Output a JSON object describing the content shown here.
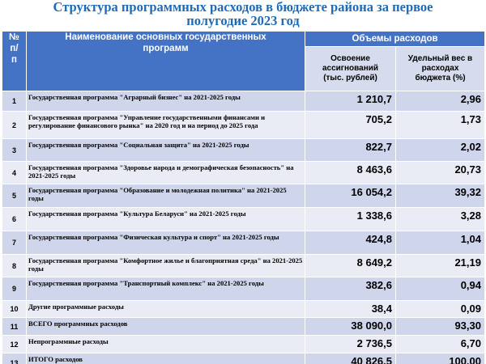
{
  "title": "Структура программных расходов в бюджете района за первое\nполугодие  2023  год",
  "header": {
    "num": "№\nп/\nп",
    "name": "Наименование основных государственных\nпрограмм",
    "volumes": "Объемы расходов",
    "spent": "Освоение\nассигнований\n(тыс. рублей)",
    "share": "Удельный вес в\nрасходах\nбюджета (%)"
  },
  "rows": [
    {
      "num": "1",
      "name": "Государственная программа \"Аграрный бизнес\" на 2021-2025 годы",
      "spent": "1 210,7",
      "share": "2,96"
    },
    {
      "num": "2",
      "name": "Государственная программа \"Управление государственными финансами и регулирование финансового рынка\" на 2020 год и на период до 2025 года",
      "spent": "705,2",
      "share": "1,73"
    },
    {
      "num": "3",
      "name": "Государственная программа \"Социальная защита\" на 2021-2025 годы",
      "spent": "822,7",
      "share": "2,02"
    },
    {
      "num": "4",
      "name": "Государственная программа \"Здоровье народа и демографическая безопасность\" на 2021-2025 годы",
      "spent": "8 463,6",
      "share": "20,73"
    },
    {
      "num": "5",
      "name": "Государственная программа \"Образование и молодежная политика\" на 2021-2025 годы",
      "spent": "16 054,2",
      "share": "39,32"
    },
    {
      "num": "6",
      "name": "Государственная программа \"Культура Беларуси\" на 2021-2025 годы",
      "spent": "1 338,6",
      "share": "3,28"
    },
    {
      "num": "7",
      "name": "Государственная программа \"Физическая культура и спорт\" на 2021-2025 годы",
      "spent": "424,8",
      "share": "1,04"
    },
    {
      "num": "8",
      "name": "Государственная программа \"Комфортное жилье и благоприятная среда\" на 2021-2025 годы",
      "spent": "8 649,2",
      "share": "21,19"
    },
    {
      "num": "9",
      "name": "Государственная программа \"Транспортный комплекс\" на 2021-2025 годы",
      "spent": "382,6",
      "share": "0,94"
    },
    {
      "num": "10",
      "name": "Другие программные расходы",
      "spent": "38,4",
      "share": "0,09"
    },
    {
      "num": "11",
      "name": "ВСЕГО программных расходов",
      "spent": "38 090,0",
      "share": "93,30"
    },
    {
      "num": "12",
      "name": "Непрограммные расходы",
      "spent": "2 736,5",
      "share": "6,70"
    },
    {
      "num": "13",
      "name": "ИТОГО расходов",
      "spent": "40 826,5",
      "share": "100,00"
    }
  ],
  "colors": {
    "title": "#1f6bb5",
    "header": "#4472c4",
    "subheader": "#d6dcee",
    "band_dark": "#cfd5ea",
    "band_light": "#e9ebf5"
  }
}
